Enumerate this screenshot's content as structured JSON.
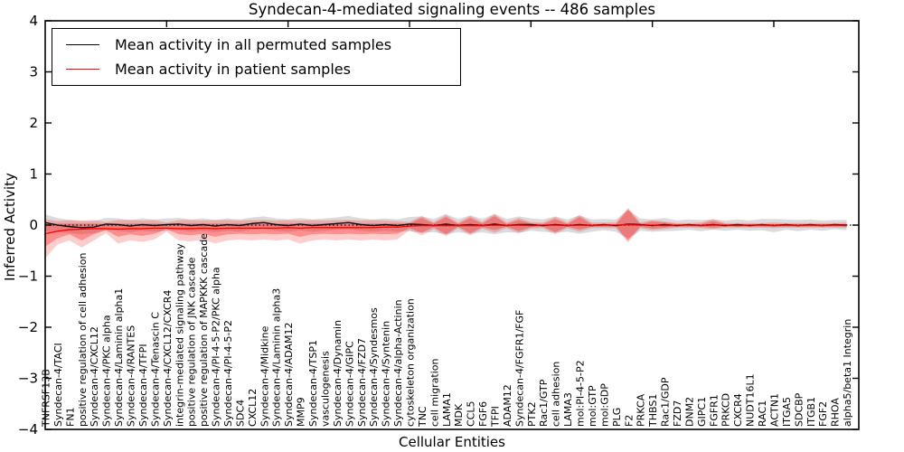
{
  "chart_data": {
    "type": "line",
    "title": "Syndecan-4-mediated signaling events -- 486 samples",
    "xlabel": "Cellular Entities",
    "ylabel": "Inferred Activity",
    "ylim": [
      -4,
      4
    ],
    "yticks": [
      -4,
      -3,
      -2,
      -1,
      0,
      1,
      2,
      3,
      4
    ],
    "top_tick_positions": [
      10,
      20,
      30,
      40,
      50,
      60
    ],
    "grid": false,
    "zero_line": {
      "y": 0,
      "style": "dotted",
      "color": "#000000"
    },
    "legend": {
      "position": "upper-left",
      "entries": [
        {
          "label": "Mean activity in all permuted samples",
          "color": "#000000"
        },
        {
          "label": "Mean activity in patient samples",
          "color": "#ff0000"
        }
      ]
    },
    "categories": [
      "TNFRSF13B",
      "Syndecan-4/TACI",
      "FN1",
      "positive regulation of cell adhesion",
      "Syndecan-4/CXCL12",
      "Syndecan-4/PKC alpha",
      "Syndecan-4/Laminin alpha1",
      "Syndecan-4/RANTES",
      "Syndecan-4/TFPI",
      "Syndecan-4/Tenascin C",
      "Syndecan-4/CXCL12/CXCR4",
      "integrin-mediated signaling pathway",
      "positive regulation of JNK cascade",
      "positive regulation of MAPKKK cascade",
      "Syndecan-4/PI-4-5-P2/PKC alpha",
      "Syndecan-4/PI-4-5-P2",
      "SDC4",
      "CXCL12",
      "Syndecan-4/Midkine",
      "Syndecan-4/Laminin alpha3",
      "Syndecan-4/ADAM12",
      "MMP9",
      "Syndecan-4/TSP1",
      "vasculogenesis",
      "Syndecan-4/Dynamin",
      "Syndecan-4/GIPC",
      "Syndecan-4/FZD7",
      "Syndecan-4/Syndesmos",
      "Syndecan-4/Syntenin",
      "Syndecan-4/alpha-Actinin",
      "cytoskeleton organization",
      "TNC",
      "cell migration",
      "LAMA1",
      "MDK",
      "CCL5",
      "FGF6",
      "TFPI",
      "ADAM12",
      "Syndecan-4/FGFR1/FGF",
      "PTK2",
      "Rac1/GTP",
      "cell adhesion",
      "LAMA3",
      "mol:PI-4-5-P2",
      "mol:GTP",
      "mol:GDP",
      "PLG",
      "F2",
      "PRKCA",
      "THBS1",
      "Rac1/GDP",
      "FZD7",
      "DNM2",
      "GIPC1",
      "FGFR1",
      "PRKCD",
      "CXCR4",
      "NUDT16L1",
      "RAC1",
      "ACTN1",
      "ITGA5",
      "SDCBP",
      "ITGB1",
      "FGF2",
      "RHOA",
      "alpha5/beta1 Integrin"
    ],
    "series": [
      {
        "name": "permuted_mean",
        "label": "Mean activity in all permuted samples",
        "color": "#000000",
        "values": [
          0.05,
          0.0,
          -0.03,
          -0.05,
          -0.04,
          0.02,
          0.01,
          -0.02,
          0.01,
          -0.01,
          0.01,
          0.02,
          -0.01,
          0.01,
          -0.02,
          0.01,
          -0.01,
          0.03,
          0.05,
          0.01,
          -0.01,
          0.02,
          -0.01,
          0.01,
          0.03,
          0.05,
          0.01,
          -0.01,
          0.01,
          -0.01,
          0.02,
          0.01,
          -0.01,
          0.02,
          -0.01,
          0.01,
          -0.01,
          0.02,
          -0.01,
          0.01,
          0.01,
          -0.01,
          0.01,
          -0.01,
          0.01,
          -0.01,
          0.01,
          -0.01,
          0.02,
          0.01,
          -0.01,
          0.01,
          -0.01,
          0.01,
          -0.01,
          0.01,
          -0.01,
          0.01,
          -0.01,
          0.01,
          -0.01,
          0.01,
          -0.01,
          0.01,
          -0.01,
          0.01,
          0.0
        ]
      },
      {
        "name": "patient_mean",
        "label": "Mean activity in patient samples",
        "color": "#ff0000",
        "values": [
          -0.17,
          -0.12,
          -0.09,
          -0.08,
          -0.07,
          -0.07,
          -0.08,
          -0.07,
          -0.07,
          -0.06,
          -0.06,
          -0.07,
          -0.07,
          -0.06,
          -0.07,
          -0.06,
          -0.06,
          -0.06,
          -0.06,
          -0.06,
          -0.05,
          -0.06,
          -0.05,
          -0.05,
          -0.05,
          -0.05,
          -0.05,
          -0.05,
          -0.04,
          -0.04,
          -0.02,
          -0.01,
          -0.01,
          -0.01,
          -0.01,
          -0.01,
          -0.01,
          0.0,
          -0.01,
          0.0,
          -0.01,
          0.0,
          0.0,
          -0.01,
          0.0,
          -0.01,
          0.0,
          0.0,
          0.01,
          0.0,
          0.0,
          -0.01,
          0.0,
          0.0,
          -0.01,
          0.0,
          0.0,
          -0.01,
          0.0,
          0.0,
          -0.01,
          0.0,
          -0.01,
          0.0,
          -0.01,
          0.0,
          -0.01
        ]
      }
    ],
    "bands": [
      {
        "name": "permuted_std_band",
        "color": "#999999",
        "opacity": 0.35,
        "around": "permuted_mean",
        "half_widths": [
          0.16,
          0.14,
          0.13,
          0.13,
          0.12,
          0.12,
          0.12,
          0.12,
          0.12,
          0.12,
          0.12,
          0.12,
          0.12,
          0.12,
          0.12,
          0.12,
          0.12,
          0.12,
          0.12,
          0.12,
          0.12,
          0.12,
          0.12,
          0.12,
          0.12,
          0.13,
          0.12,
          0.12,
          0.12,
          0.12,
          0.14,
          0.16,
          0.13,
          0.2,
          0.13,
          0.18,
          0.13,
          0.2,
          0.13,
          0.16,
          0.12,
          0.12,
          0.16,
          0.12,
          0.18,
          0.12,
          0.11,
          0.12,
          0.28,
          0.12,
          0.12,
          0.13,
          0.1,
          0.1,
          0.11,
          0.1,
          0.1,
          0.1,
          0.1,
          0.11,
          0.13,
          0.1,
          0.11,
          0.1,
          0.1,
          0.09,
          0.1
        ]
      },
      {
        "name": "patient_outer_band",
        "color": "#ff0000",
        "opacity": 0.2,
        "upper": [
          0.12,
          0.08,
          0.1,
          0.09,
          0.1,
          0.06,
          0.1,
          0.1,
          0.09,
          0.1,
          0.05,
          0.1,
          0.1,
          0.09,
          0.1,
          0.1,
          0.09,
          0.1,
          0.1,
          0.09,
          0.1,
          0.09,
          0.1,
          0.09,
          0.1,
          0.1,
          0.09,
          0.1,
          0.09,
          0.08,
          0.06,
          0.18,
          0.06,
          0.2,
          0.05,
          0.18,
          0.06,
          0.22,
          0.05,
          0.14,
          0.06,
          0.05,
          0.16,
          0.05,
          0.2,
          0.05,
          0.05,
          0.05,
          0.34,
          0.05,
          0.1,
          0.07,
          0.04,
          0.04,
          0.05,
          0.12,
          0.04,
          0.04,
          0.04,
          0.04,
          0.05,
          0.04,
          0.04,
          0.04,
          0.04,
          0.04,
          0.05
        ],
        "lower": [
          -0.65,
          -0.38,
          -0.3,
          -0.44,
          -0.3,
          -0.16,
          -0.36,
          -0.3,
          -0.33,
          -0.28,
          -0.13,
          -0.3,
          -0.32,
          -0.28,
          -0.36,
          -0.3,
          -0.28,
          -0.3,
          -0.28,
          -0.3,
          -0.28,
          -0.36,
          -0.3,
          -0.28,
          -0.3,
          -0.28,
          -0.3,
          -0.28,
          -0.3,
          -0.28,
          -0.1,
          -0.2,
          -0.08,
          -0.22,
          -0.06,
          -0.2,
          -0.07,
          -0.15,
          -0.06,
          -0.16,
          -0.07,
          -0.06,
          -0.18,
          -0.06,
          -0.13,
          -0.06,
          -0.06,
          -0.06,
          -0.34,
          -0.06,
          -0.1,
          -0.08,
          -0.05,
          -0.05,
          -0.06,
          -0.08,
          -0.05,
          -0.05,
          -0.05,
          -0.05,
          -0.06,
          -0.05,
          -0.05,
          -0.05,
          -0.05,
          -0.05,
          -0.06
        ]
      },
      {
        "name": "patient_inner_band",
        "color": "#ff0000",
        "opacity": 0.3,
        "upper": [
          0.05,
          0.03,
          0.03,
          0.03,
          0.03,
          0.02,
          0.03,
          0.03,
          0.03,
          0.03,
          0.02,
          0.03,
          0.03,
          0.03,
          0.03,
          0.03,
          0.03,
          0.03,
          0.03,
          0.03,
          0.03,
          0.03,
          0.03,
          0.03,
          0.03,
          0.03,
          0.03,
          0.03,
          0.03,
          0.03,
          0.03,
          0.14,
          0.03,
          0.16,
          0.02,
          0.14,
          0.03,
          0.18,
          0.02,
          0.1,
          0.03,
          0.02,
          0.12,
          0.02,
          0.16,
          0.02,
          0.02,
          0.02,
          0.3,
          0.02,
          0.07,
          0.05,
          0.02,
          0.02,
          0.02,
          0.08,
          0.02,
          0.02,
          0.02,
          0.02,
          0.02,
          0.02,
          0.02,
          0.02,
          0.02,
          0.02,
          0.02
        ],
        "lower": [
          -0.42,
          -0.26,
          -0.18,
          -0.3,
          -0.18,
          -0.1,
          -0.23,
          -0.18,
          -0.21,
          -0.17,
          -0.08,
          -0.18,
          -0.2,
          -0.17,
          -0.23,
          -0.18,
          -0.17,
          -0.18,
          -0.17,
          -0.18,
          -0.17,
          -0.23,
          -0.18,
          -0.17,
          -0.18,
          -0.17,
          -0.18,
          -0.17,
          -0.18,
          -0.17,
          -0.06,
          -0.15,
          -0.04,
          -0.18,
          -0.03,
          -0.16,
          -0.04,
          -0.1,
          -0.03,
          -0.12,
          -0.04,
          -0.03,
          -0.14,
          -0.03,
          -0.09,
          -0.03,
          -0.03,
          -0.03,
          -0.3,
          -0.03,
          -0.07,
          -0.05,
          -0.03,
          -0.03,
          -0.03,
          -0.05,
          -0.03,
          -0.03,
          -0.03,
          -0.03,
          -0.03,
          -0.03,
          -0.03,
          -0.03,
          -0.03,
          -0.03,
          -0.03
        ]
      }
    ]
  }
}
